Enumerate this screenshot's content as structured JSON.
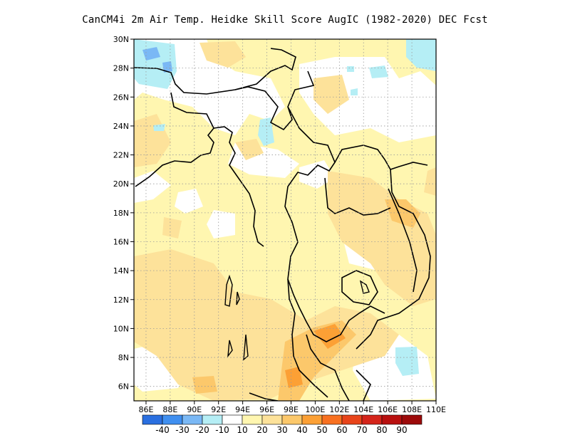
{
  "title": "CanCM4i  2m Air Temp. Heidke Skill Score AugIC (1982-2020) DEC Fcst",
  "map": {
    "lat_labels": [
      "30N",
      "28N",
      "26N",
      "24N",
      "22N",
      "20N",
      "18N",
      "16N",
      "14N",
      "12N",
      "10N",
      "8N",
      "6N"
    ],
    "lon_labels": [
      "86E",
      "88E",
      "90E",
      "92E",
      "94E",
      "96E",
      "98E",
      "100E",
      "102E",
      "104E",
      "106E",
      "108E",
      "110E"
    ],
    "lat_values": [
      30,
      28,
      26,
      24,
      22,
      20,
      18,
      16,
      14,
      12,
      10,
      8,
      6
    ],
    "lon_values": [
      86,
      88,
      90,
      92,
      94,
      96,
      98,
      100,
      102,
      104,
      106,
      108,
      110
    ],
    "lon_range": [
      85,
      110
    ],
    "lat_range": [
      5,
      30
    ],
    "grid": "dotted"
  },
  "colorbar": {
    "colors": [
      "#2a6fe0",
      "#3f8ff0",
      "#7ab8f5",
      "#b5eef5",
      "#ffffff",
      "#fff6b0",
      "#fde29a",
      "#fcc86b",
      "#fca035",
      "#f87020",
      "#e8441a",
      "#d4241a",
      "#b8100f",
      "#9c0a0a"
    ],
    "labels": [
      "-40",
      "-30",
      "-20",
      "-10",
      "10",
      "20",
      "30",
      "40",
      "50",
      "60",
      "70",
      "80",
      "90"
    ]
  }
}
